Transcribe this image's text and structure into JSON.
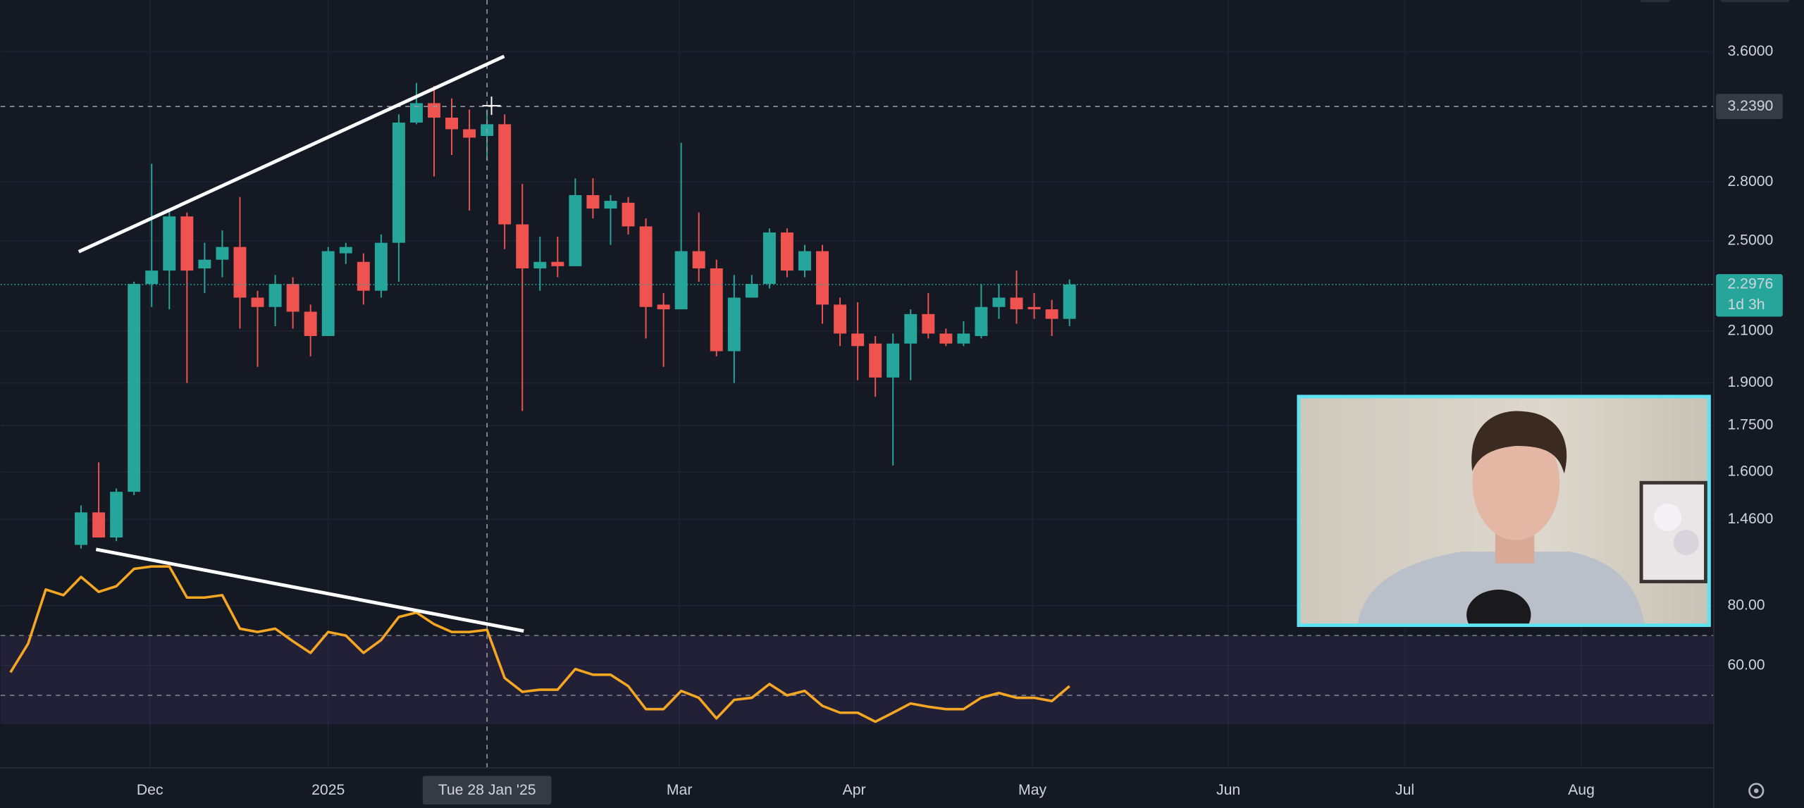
{
  "chart_data": [
    {
      "type": "candlestick",
      "x": [
        0,
        1,
        2,
        3,
        4,
        5,
        6,
        7,
        8,
        9,
        10,
        11,
        12,
        13,
        14,
        15,
        16,
        17,
        18,
        19,
        20,
        21,
        22,
        23,
        24,
        25,
        26,
        27,
        28,
        29,
        30,
        31,
        32,
        33,
        34,
        35,
        36,
        37,
        38,
        39,
        40,
        41,
        42,
        43,
        44,
        45,
        46,
        47,
        48,
        49,
        50,
        51,
        52,
        53,
        54,
        55,
        56
      ],
      "open": [
        1.39,
        1.48,
        1.41,
        1.54,
        2.3,
        2.36,
        2.62,
        2.37,
        2.41,
        2.47,
        2.24,
        2.2,
        2.3,
        2.18,
        2.08,
        2.44,
        2.4,
        2.27,
        2.49,
        3.14,
        3.26,
        3.17,
        3.1,
        3.06,
        3.13,
        2.58,
        2.37,
        2.4,
        2.38,
        2.73,
        2.66,
        2.69,
        2.57,
        2.21,
        2.19,
        2.45,
        2.37,
        2.02,
        2.24,
        2.3,
        2.54,
        2.36,
        2.45,
        2.21,
        2.09,
        2.05,
        1.92,
        2.05,
        2.17,
        2.09,
        2.05,
        2.08,
        2.2,
        2.24,
        2.2,
        2.19,
        2.15
      ],
      "high": [
        1.5,
        1.63,
        1.55,
        2.31,
        2.9,
        2.65,
        2.64,
        2.49,
        2.55,
        2.72,
        2.27,
        2.34,
        2.33,
        2.21,
        2.47,
        2.49,
        2.44,
        2.53,
        3.19,
        3.39,
        3.37,
        3.29,
        3.22,
        3.22,
        3.19,
        2.79,
        2.52,
        2.52,
        2.82,
        2.82,
        2.73,
        2.72,
        2.61,
        2.26,
        3.02,
        2.64,
        2.41,
        2.34,
        2.34,
        2.56,
        2.56,
        2.48,
        2.48,
        2.24,
        2.22,
        2.08,
        2.09,
        2.19,
        2.26,
        2.11,
        2.14,
        2.3,
        2.3,
        2.36,
        2.26,
        2.23,
        2.32
      ],
      "low": [
        1.38,
        1.41,
        1.4,
        1.53,
        2.2,
        2.19,
        1.9,
        2.26,
        2.33,
        2.11,
        1.96,
        2.12,
        2.11,
        2.0,
        2.08,
        2.39,
        2.21,
        2.24,
        2.31,
        3.13,
        2.83,
        2.95,
        2.65,
        2.92,
        2.46,
        1.8,
        2.27,
        2.33,
        2.38,
        2.61,
        2.48,
        2.53,
        2.07,
        1.96,
        2.19,
        2.31,
        2.0,
        1.9,
        2.24,
        2.28,
        2.33,
        2.33,
        2.13,
        2.04,
        1.91,
        1.85,
        1.62,
        1.91,
        2.07,
        2.04,
        2.04,
        2.07,
        2.15,
        2.13,
        2.15,
        2.08,
        2.12
      ],
      "close": [
        1.48,
        1.41,
        1.54,
        2.3,
        2.36,
        2.62,
        2.36,
        2.41,
        2.47,
        2.24,
        2.2,
        2.3,
        2.18,
        2.08,
        2.45,
        2.47,
        2.27,
        2.49,
        3.14,
        3.26,
        3.17,
        3.1,
        3.05,
        3.13,
        2.58,
        2.37,
        2.4,
        2.38,
        2.73,
        2.66,
        2.7,
        2.57,
        2.2,
        2.19,
        2.45,
        2.37,
        2.02,
        2.24,
        2.3,
        2.54,
        2.36,
        2.45,
        2.21,
        2.09,
        2.04,
        1.92,
        2.05,
        2.17,
        2.09,
        2.05,
        2.09,
        2.2,
        2.24,
        2.19,
        2.19,
        2.15,
        2.2976
      ],
      "up_color": "#26a69a",
      "down_color": "#ef5350",
      "log_scale": true,
      "grid": true,
      "xlim": [
        -4.56,
        92.5
      ],
      "ylim": [
        1.378,
        3.978
      ],
      "yticks": [
        {
          "value": 3.6,
          "label": "3.6000"
        },
        {
          "value": 2.8,
          "label": "2.8000"
        },
        {
          "value": 2.5,
          "label": "2.5000"
        },
        {
          "value": 2.1,
          "label": "2.1000"
        },
        {
          "value": 1.9,
          "label": "1.9000"
        },
        {
          "value": 1.75,
          "label": "1.7500"
        },
        {
          "value": 1.6,
          "label": "1.6000"
        },
        {
          "value": 1.46,
          "label": "1.4600"
        }
      ],
      "xticks": [
        {
          "value": 3.9,
          "label": "Dec"
        },
        {
          "value": 14,
          "label": "2025"
        },
        {
          "value": 33.9,
          "label": "Mar"
        },
        {
          "value": 43.8,
          "label": "Apr"
        },
        {
          "value": 53.9,
          "label": "May"
        },
        {
          "value": 65,
          "label": "Jun"
        },
        {
          "value": 75,
          "label": "Jul"
        },
        {
          "value": 85,
          "label": "Aug"
        }
      ],
      "last_price": {
        "value": 2.2976,
        "label": "2.2976",
        "countdown": "1d 3h"
      },
      "crosshair": {
        "price": {
          "value": 3.239,
          "label": "3.2390"
        },
        "time": {
          "value": 23,
          "label": "Tue 28 Jan '25"
        }
      }
    },
    {
      "type": "line",
      "x": [
        -4,
        -3,
        -2,
        -1,
        0,
        1,
        2,
        3,
        4,
        5,
        6,
        7,
        8,
        9,
        10,
        11,
        12,
        13,
        14,
        15,
        16,
        17,
        18,
        19,
        20,
        21,
        22,
        23,
        24,
        25,
        26,
        27,
        28,
        29,
        30,
        31,
        32,
        33,
        34,
        35,
        36,
        37,
        38,
        39,
        40,
        41,
        42,
        43,
        44,
        45,
        46,
        47,
        48,
        49,
        50,
        51,
        52,
        53,
        54,
        55,
        56
      ],
      "values": [
        57.7,
        67.3,
        85.4,
        83.5,
        89.6,
        84.6,
        86.5,
        92.3,
        93.1,
        93.1,
        82.7,
        82.7,
        83.5,
        72.3,
        71.2,
        72.3,
        68.1,
        64.2,
        71.2,
        70.0,
        64.2,
        68.5,
        76.2,
        77.7,
        73.8,
        71.2,
        71.2,
        71.9,
        55.8,
        51.2,
        51.9,
        51.9,
        58.8,
        56.9,
        56.9,
        53.1,
        45.4,
        45.4,
        51.5,
        49.2,
        42.3,
        48.5,
        49.2,
        53.8,
        50.0,
        51.5,
        46.5,
        44.2,
        44.2,
        41.2,
        44.2,
        47.3,
        46.2,
        45.4,
        45.4,
        49.2,
        50.8,
        49.2,
        49.2,
        48.1,
        53.1
      ],
      "color": "#f5a623",
      "ylim": [
        40.4,
        98.8
      ],
      "yticks": [
        {
          "value": 80,
          "label": "80.00"
        },
        {
          "value": 60,
          "label": "60.00"
        }
      ],
      "band": [
        30,
        70
      ],
      "band_color": "#7e57c2",
      "band_lines": [
        70,
        50
      ]
    }
  ]
}
